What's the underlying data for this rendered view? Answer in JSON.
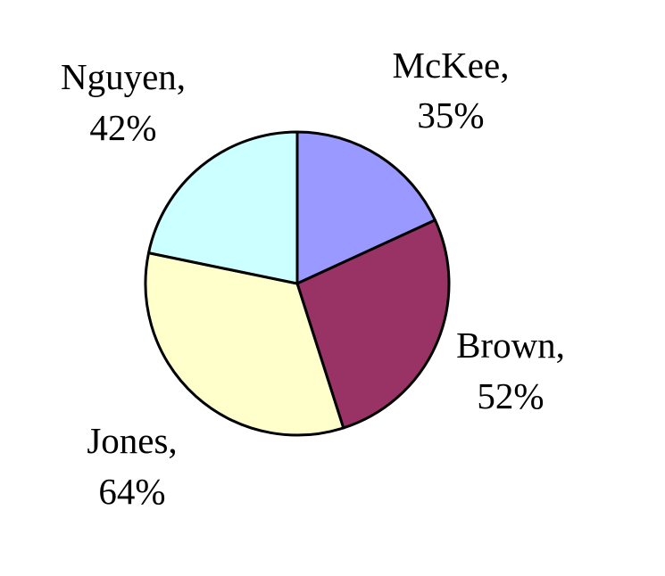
{
  "chart_data": {
    "type": "pie",
    "title": "",
    "slices": [
      {
        "label": "McKee",
        "value": 35,
        "display": "35%",
        "color": "#9999FF"
      },
      {
        "label": "Brown",
        "value": 52,
        "display": "52%",
        "color": "#993366"
      },
      {
        "label": "Jones",
        "value": 64,
        "display": "64%",
        "color": "#FFFFCC"
      },
      {
        "label": "Nguyen",
        "value": 42,
        "display": "42%",
        "color": "#CCFFFF"
      }
    ]
  }
}
